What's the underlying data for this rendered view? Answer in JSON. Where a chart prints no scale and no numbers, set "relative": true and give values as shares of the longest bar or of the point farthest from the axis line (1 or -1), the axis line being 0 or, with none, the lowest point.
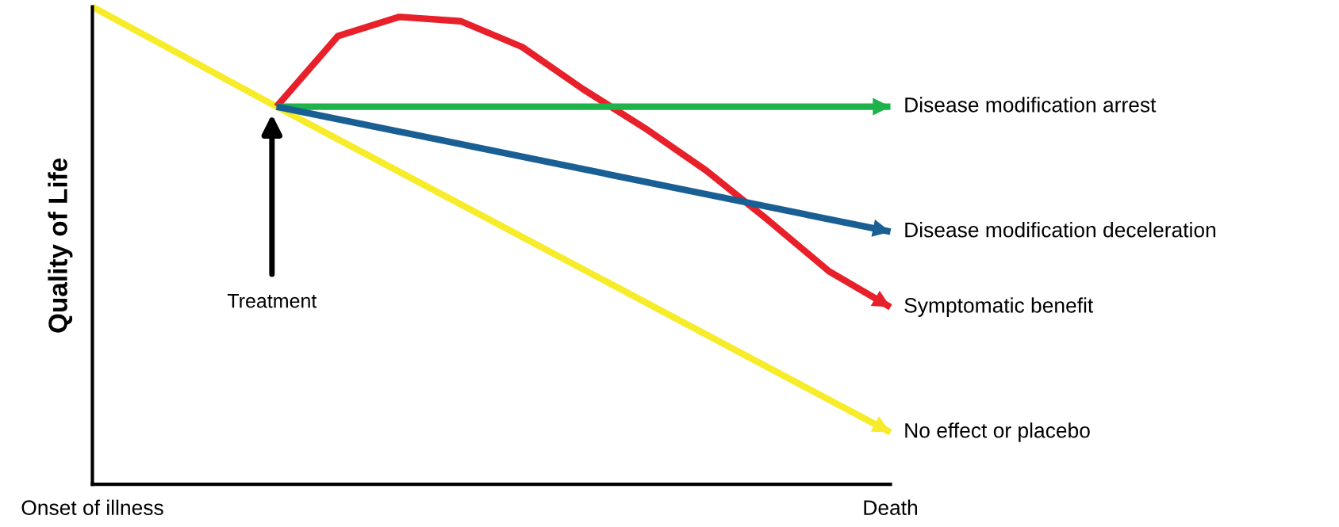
{
  "chart_data": {
    "type": "line",
    "relative": true,
    "ylabel": "Quality of Life",
    "categories": [
      "Onset of illness",
      null,
      null,
      null,
      null,
      null,
      null,
      null,
      null,
      null,
      null,
      null,
      null,
      "Death"
    ],
    "grid": false,
    "legend": "right",
    "marker": "none",
    "line_style": "solid",
    "series": [
      {
        "name": "No effect or placebo",
        "color": "#f7ec2a",
        "values": [
          1.0,
          null,
          null,
          0.791,
          null,
          null,
          null,
          null,
          null,
          null,
          null,
          null,
          null,
          0.109
        ]
      },
      {
        "name": "Symptomatic benefit",
        "color": "#e8202a",
        "values": [
          null,
          null,
          null,
          0.791,
          0.939,
          0.979,
          0.97,
          0.916,
          0.827,
          0.746,
          0.657,
          0.554,
          0.446,
          0.371
        ]
      },
      {
        "name": "Disease modification arrest",
        "color": "#1db24a",
        "values": [
          null,
          null,
          null,
          0.791,
          null,
          null,
          null,
          null,
          null,
          null,
          null,
          null,
          null,
          0.791
        ]
      },
      {
        "name": "Disease modification deceleration",
        "color": "#1a5f94",
        "values": [
          null,
          null,
          null,
          0.791,
          null,
          null,
          null,
          null,
          null,
          null,
          null,
          null,
          null,
          0.529
        ]
      }
    ],
    "annotations": [
      "Treatment"
    ]
  }
}
